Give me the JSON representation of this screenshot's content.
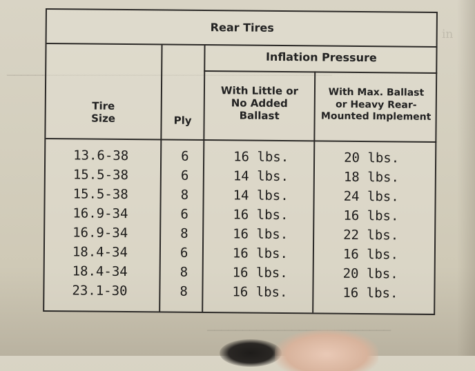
{
  "table": {
    "title": "Rear Tires",
    "group_header": "Inflation Pressure",
    "columns": {
      "size": "Tire\nSize",
      "ply": "Ply",
      "little": "With Little or\nNo Added\nBallast",
      "max": "With Max. Ballast\nor Heavy Rear-\nMounted Implement"
    },
    "rows": [
      {
        "size": "13.6-38",
        "ply": "6",
        "little": "16 lbs.",
        "max": "20 lbs."
      },
      {
        "size": "15.5-38",
        "ply": "6",
        "little": "14 lbs.",
        "max": "18 lbs."
      },
      {
        "size": "15.5-38",
        "ply": "8",
        "little": "14 lbs.",
        "max": "24 lbs."
      },
      {
        "size": "16.9-34",
        "ply": "6",
        "little": "16 lbs.",
        "max": "16 lbs."
      },
      {
        "size": "16.9-34",
        "ply": "8",
        "little": "16 lbs.",
        "max": "22 lbs."
      },
      {
        "size": "18.4-34",
        "ply": "6",
        "little": "16 lbs.",
        "max": "16 lbs."
      },
      {
        "size": "18.4-34",
        "ply": "8",
        "little": "16 lbs.",
        "max": "20 lbs."
      },
      {
        "size": "23.1-30",
        "ply": "8",
        "little": "16 lbs.",
        "max": "16 lbs."
      }
    ]
  }
}
